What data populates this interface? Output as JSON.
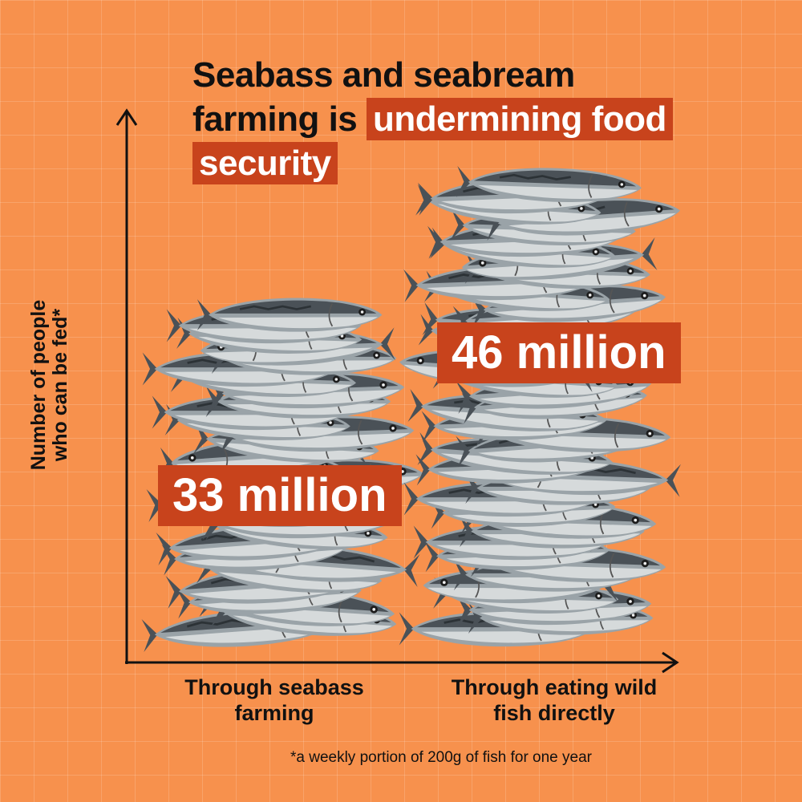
{
  "title": {
    "plain": "Seabass and seabream farming is ",
    "highlight": "undermining food security"
  },
  "chart_data": {
    "type": "bar",
    "categories": [
      "Through seabass farming",
      "Through eating wild fish directly"
    ],
    "values": [
      33,
      46
    ],
    "value_labels": [
      "33 million",
      "46 million"
    ],
    "unit": "million",
    "ylabel": "Number of people who can be fed*",
    "ylim": [
      0,
      60
    ],
    "grid": true,
    "legend": "none",
    "bar_style": "stacked fish images"
  },
  "footnote": "*a weekly portion of 200g of fish for one year",
  "colors": {
    "background": "#f7914d",
    "highlight": "#c8431c",
    "text": "#111111",
    "fish_body": "#9aa3a8",
    "fish_back": "#4a5157",
    "fish_belly": "#d6dadb"
  }
}
